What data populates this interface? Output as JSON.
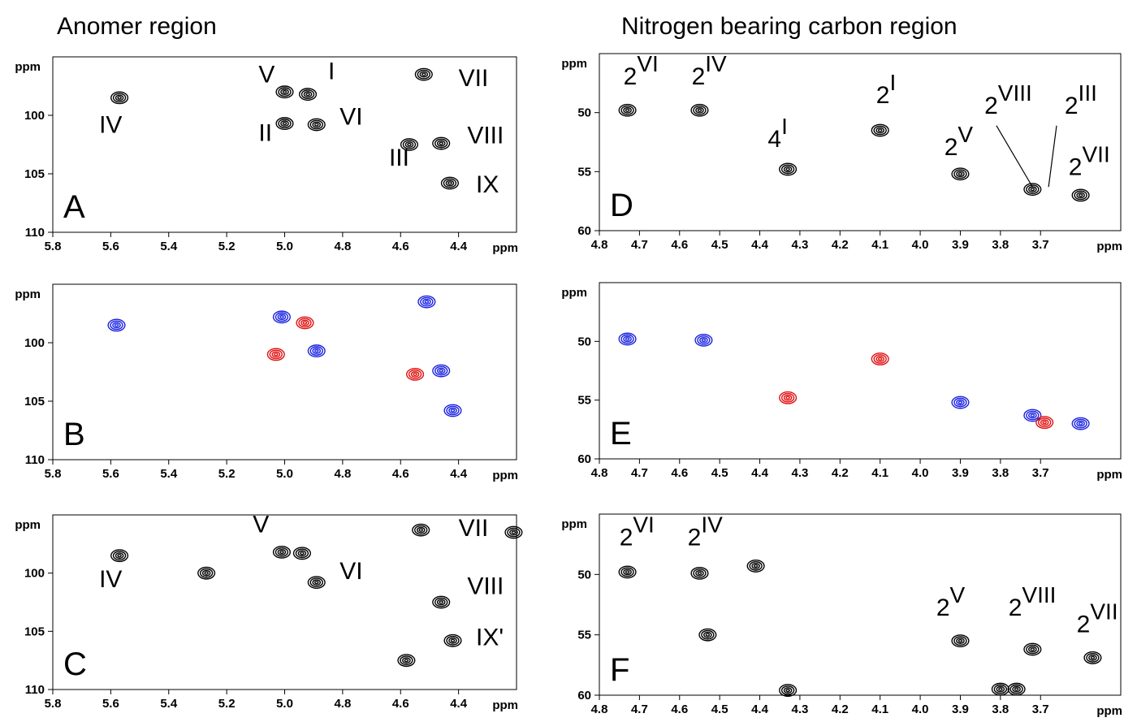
{
  "headers": {
    "left": "Anomer region",
    "right": "Nitrogen bearing carbon region"
  },
  "colors": {
    "frame": "#000000",
    "contour_black": "#000000",
    "contour_blue": "#1a22e0",
    "contour_red": "#e01010"
  },
  "chart_data": [
    {
      "panel": "A",
      "type": "scatter",
      "xlabel": "ppm",
      "ylabel": "ppm",
      "xlim": [
        5.8,
        4.2
      ],
      "ylim": [
        95,
        110
      ],
      "x_ticks": [
        "5.8",
        "5.6",
        "5.4",
        "5.2",
        "5.0",
        "4.8",
        "4.6",
        "4.4"
      ],
      "y_ticks": [
        "100",
        "105",
        "110"
      ],
      "series": [
        {
          "color": "black",
          "points": [
            {
              "x": 5.57,
              "y": 98.5
            },
            {
              "x": 5.0,
              "y": 98.0
            },
            {
              "x": 4.92,
              "y": 98.2
            },
            {
              "x": 5.0,
              "y": 100.7
            },
            {
              "x": 4.89,
              "y": 100.8
            },
            {
              "x": 4.52,
              "y": 96.5
            },
            {
              "x": 4.57,
              "y": 102.5
            },
            {
              "x": 4.46,
              "y": 102.4
            },
            {
              "x": 4.43,
              "y": 105.8
            }
          ]
        }
      ],
      "annotations": [
        {
          "text": "IV",
          "x": 5.64,
          "y": 101.5
        },
        {
          "text": "V",
          "x": 5.09,
          "y": 97.2
        },
        {
          "text": "I",
          "x": 4.85,
          "y": 96.9
        },
        {
          "text": "II",
          "x": 5.09,
          "y": 102.2
        },
        {
          "text": "VI",
          "x": 4.81,
          "y": 100.8
        },
        {
          "text": "VII",
          "x": 4.4,
          "y": 97.5
        },
        {
          "text": "VIII",
          "x": 4.37,
          "y": 102.4
        },
        {
          "text": "III",
          "x": 4.64,
          "y": 104.3
        },
        {
          "text": "IX",
          "x": 4.34,
          "y": 106.6
        }
      ]
    },
    {
      "panel": "B",
      "type": "scatter",
      "xlabel": "ppm",
      "ylabel": "ppm",
      "xlim": [
        5.8,
        4.2
      ],
      "ylim": [
        95,
        110
      ],
      "x_ticks": [
        "5.8",
        "5.6",
        "5.4",
        "5.2",
        "5.0",
        "4.8",
        "4.6",
        "4.4"
      ],
      "y_ticks": [
        "100",
        "105",
        "110"
      ],
      "series": [
        {
          "color": "blue",
          "points": [
            {
              "x": 5.58,
              "y": 98.5
            },
            {
              "x": 5.01,
              "y": 97.8
            },
            {
              "x": 4.89,
              "y": 100.7
            },
            {
              "x": 4.51,
              "y": 96.5
            },
            {
              "x": 4.46,
              "y": 102.4
            },
            {
              "x": 4.42,
              "y": 105.8
            }
          ]
        },
        {
          "color": "red",
          "points": [
            {
              "x": 4.93,
              "y": 98.3
            },
            {
              "x": 5.03,
              "y": 101.0
            },
            {
              "x": 4.55,
              "y": 102.7
            }
          ]
        }
      ],
      "annotations": []
    },
    {
      "panel": "C",
      "type": "scatter",
      "xlabel": "ppm",
      "ylabel": "ppm",
      "xlim": [
        5.8,
        4.2
      ],
      "ylim": [
        95,
        110
      ],
      "x_ticks": [
        "5.8",
        "5.6",
        "5.4",
        "5.2",
        "5.0",
        "4.8",
        "4.6",
        "4.4"
      ],
      "y_ticks": [
        "100",
        "105",
        "110"
      ],
      "series": [
        {
          "color": "black",
          "points": [
            {
              "x": 5.57,
              "y": 98.5
            },
            {
              "x": 5.27,
              "y": 100.0
            },
            {
              "x": 5.01,
              "y": 98.2
            },
            {
              "x": 4.89,
              "y": 100.8
            },
            {
              "x": 4.53,
              "y": 96.3
            },
            {
              "x": 4.46,
              "y": 102.5
            },
            {
              "x": 4.42,
              "y": 105.8
            },
            {
              "x": 4.94,
              "y": 98.3
            },
            {
              "x": 4.58,
              "y": 107.5
            },
            {
              "x": 4.21,
              "y": 96.5
            }
          ]
        }
      ],
      "annotations": [
        {
          "text": "IV",
          "x": 5.64,
          "y": 101.2
        },
        {
          "text": "V",
          "x": 5.11,
          "y": 96.5
        },
        {
          "text": "VI",
          "x": 4.81,
          "y": 100.5
        },
        {
          "text": "VII",
          "x": 4.4,
          "y": 96.8
        },
        {
          "text": "VIII",
          "x": 4.37,
          "y": 101.8
        },
        {
          "text": "IX'",
          "x": 4.34,
          "y": 106.2
        }
      ]
    },
    {
      "panel": "D",
      "type": "scatter",
      "xlabel": "ppm",
      "ylabel": "ppm",
      "xlim": [
        4.8,
        3.5
      ],
      "ylim": [
        45,
        60
      ],
      "x_ticks": [
        "4.8",
        "4.7",
        "4.6",
        "4.5",
        "4.4",
        "4.3",
        "4.2",
        "4.1",
        "4.0",
        "3.9",
        "3.8",
        "3.7"
      ],
      "y_ticks": [
        "50",
        "55",
        "60"
      ],
      "series": [
        {
          "color": "black",
          "points": [
            {
              "x": 4.73,
              "y": 49.8
            },
            {
              "x": 4.55,
              "y": 49.8
            },
            {
              "x": 4.33,
              "y": 54.8
            },
            {
              "x": 4.1,
              "y": 51.5
            },
            {
              "x": 3.9,
              "y": 55.2
            },
            {
              "x": 3.72,
              "y": 56.5
            },
            {
              "x": 3.6,
              "y": 57.0
            }
          ]
        }
      ],
      "annotations": [
        {
          "text": "2",
          "sup": "VI",
          "x": 4.74,
          "y": 47.6
        },
        {
          "text": "2",
          "sup": "IV",
          "x": 4.57,
          "y": 47.6
        },
        {
          "text": "4",
          "sup": "I",
          "x": 4.38,
          "y": 52.9
        },
        {
          "text": "2",
          "sup": "I",
          "x": 4.11,
          "y": 49.2
        },
        {
          "text": "2",
          "sup": "V",
          "x": 3.94,
          "y": 53.6
        },
        {
          "text": "2",
          "sup": "VIII",
          "x": 3.84,
          "y": 50.1
        },
        {
          "text": "2",
          "sup": "III",
          "x": 3.64,
          "y": 50.1
        },
        {
          "text": "2",
          "sup": "VII",
          "x": 3.63,
          "y": 55.3
        }
      ],
      "leader_lines": [
        {
          "from": {
            "x": 3.81,
            "y": 51.1
          },
          "to": {
            "x": 3.72,
            "y": 56.3
          }
        },
        {
          "from": {
            "x": 3.66,
            "y": 51.1
          },
          "to": {
            "x": 3.68,
            "y": 56.3
          }
        }
      ]
    },
    {
      "panel": "E",
      "type": "scatter",
      "xlabel": "ppm",
      "ylabel": "ppm",
      "xlim": [
        4.8,
        3.5
      ],
      "ylim": [
        45,
        60
      ],
      "x_ticks": [
        "4.8",
        "4.7",
        "4.6",
        "4.5",
        "4.4",
        "4.3",
        "4.2",
        "4.1",
        "4.0",
        "3.9",
        "3.8",
        "3.7"
      ],
      "y_ticks": [
        "50",
        "55",
        "60"
      ],
      "series": [
        {
          "color": "blue",
          "points": [
            {
              "x": 4.73,
              "y": 49.8
            },
            {
              "x": 4.54,
              "y": 49.9
            },
            {
              "x": 3.9,
              "y": 55.2
            },
            {
              "x": 3.72,
              "y": 56.3
            },
            {
              "x": 3.6,
              "y": 57.0
            }
          ]
        },
        {
          "color": "red",
          "points": [
            {
              "x": 4.33,
              "y": 54.8
            },
            {
              "x": 4.1,
              "y": 51.5
            },
            {
              "x": 3.69,
              "y": 56.9
            }
          ]
        }
      ],
      "annotations": []
    },
    {
      "panel": "F",
      "type": "scatter",
      "xlabel": "ppm",
      "ylabel": "ppm",
      "xlim": [
        4.8,
        3.5
      ],
      "ylim": [
        45,
        60
      ],
      "x_ticks": [
        "4.8",
        "4.7",
        "4.6",
        "4.5",
        "4.4",
        "4.3",
        "4.2",
        "4.1",
        "4.0",
        "3.9",
        "3.8",
        "3.7"
      ],
      "y_ticks": [
        "50",
        "55",
        "60"
      ],
      "series": [
        {
          "color": "black",
          "points": [
            {
              "x": 4.73,
              "y": 49.8
            },
            {
              "x": 4.55,
              "y": 49.9
            },
            {
              "x": 3.9,
              "y": 55.5
            },
            {
              "x": 3.8,
              "y": 59.5
            },
            {
              "x": 3.72,
              "y": 56.2
            },
            {
              "x": 3.57,
              "y": 56.9
            },
            {
              "x": 4.53,
              "y": 55.0
            },
            {
              "x": 4.41,
              "y": 49.3
            },
            {
              "x": 4.33,
              "y": 59.6
            },
            {
              "x": 3.76,
              "y": 59.5
            }
          ]
        }
      ],
      "annotations": [
        {
          "text": "2",
          "sup": "VI",
          "x": 4.75,
          "y": 47.6
        },
        {
          "text": "2",
          "sup": "IV",
          "x": 4.58,
          "y": 47.6
        },
        {
          "text": "2",
          "sup": "V",
          "x": 3.96,
          "y": 53.4
        },
        {
          "text": "2",
          "sup": "VIII",
          "x": 3.78,
          "y": 53.4
        },
        {
          "text": "2",
          "sup": "VII",
          "x": 3.61,
          "y": 54.8
        }
      ]
    }
  ],
  "panel_labels": [
    "A",
    "B",
    "C",
    "D",
    "E",
    "F"
  ]
}
